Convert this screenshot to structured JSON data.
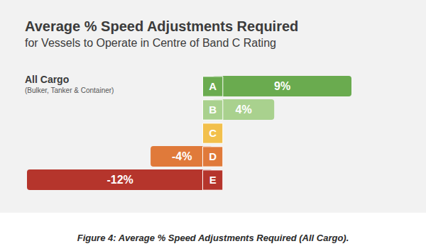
{
  "chart_data": {
    "type": "bar",
    "title": "Average % Speed Adjustments Required",
    "subtitle": "for Vessels to Operate in Centre of Band C Rating",
    "annotations": [
      "All Cargo",
      "(Bulker, Tanker & Container)"
    ],
    "caption": "Figure 4: Average % Speed Adjustments Required (All Cargo).",
    "categories": [
      "A",
      "B",
      "C",
      "D",
      "E"
    ],
    "values": [
      9,
      4,
      null,
      -4,
      -12
    ],
    "value_labels": [
      "9%",
      "4%",
      null,
      "-4%",
      "-12%"
    ],
    "colors": [
      "#6aab4f",
      "#a9d18e",
      "#f2c04c",
      "#e07a3a",
      "#b5352c"
    ],
    "xlim": [
      -12,
      9
    ],
    "orientation": "horizontal",
    "data_labels": true,
    "tick_labels": "y",
    "grid": false
  }
}
